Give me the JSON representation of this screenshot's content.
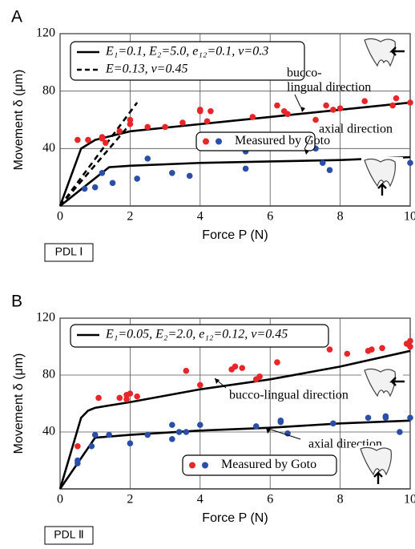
{
  "chart_data": [
    {
      "type": "line",
      "panel": "A",
      "box_label": "PDL Ⅰ",
      "x_label": "Force  P (N)",
      "y_label": "Movement δ (μm)",
      "xlim": [
        0,
        10
      ],
      "ylim": [
        0,
        120
      ],
      "xticks": [
        0,
        2,
        4,
        6,
        8,
        10
      ],
      "yticks": [
        40,
        80,
        120
      ],
      "grid": true,
      "annotations": [
        "bucco-",
        "lingual direction",
        "axial direction"
      ],
      "series": [
        {
          "name": "E₁=0.1, E₂=5.0, e₁₂=0.1, ν=0.3",
          "mode": "line",
          "dash": false,
          "color": "#000000",
          "x": [
            0,
            0.6,
            1,
            2,
            4,
            6,
            8,
            10
          ],
          "values": [
            0,
            40,
            46,
            52,
            57,
            62,
            67,
            72
          ]
        },
        {
          "mode": "line",
          "dash": false,
          "color": "#000000",
          "x": [
            0,
            1.4,
            2,
            4,
            6,
            8,
            10
          ],
          "values": [
            0,
            27,
            28,
            30,
            31,
            32,
            34
          ]
        },
        {
          "name": "E=0.13, ν=0.45",
          "mode": "line",
          "dash": true,
          "color": "#000000",
          "x": [
            0,
            2.2
          ],
          "values": [
            0,
            72
          ]
        },
        {
          "mode": "line",
          "dash": true,
          "color": "#000000",
          "x": [
            0,
            2.0
          ],
          "values": [
            0,
            57
          ]
        },
        {
          "name": "Measured by Goto",
          "mode": "markers",
          "color": "#e8262a",
          "x": [
            0.5,
            0.8,
            1.2,
            1.3,
            1.2,
            1.7,
            2,
            2,
            2.5,
            3,
            3.5,
            4,
            4,
            4.2,
            4.3,
            5.5,
            6.2,
            6.4,
            6.5,
            7.3,
            7.6,
            7.8,
            8,
            8.7,
            9.5,
            9.6,
            10
          ],
          "values": [
            46,
            46,
            47,
            44,
            48,
            52,
            57,
            60,
            55,
            55,
            58,
            66,
            67,
            59,
            66,
            62,
            70,
            66,
            64,
            60,
            70,
            67,
            68,
            73,
            70,
            75,
            72
          ]
        },
        {
          "mode": "markers",
          "color": "#2b4fa8",
          "x": [
            0.7,
            1,
            1.2,
            1.5,
            2.2,
            2.5,
            3.2,
            3.7,
            5.3,
            5.3,
            7.3,
            7.5,
            7.7,
            10
          ],
          "values": [
            12,
            13,
            23,
            16,
            19,
            33,
            23,
            21,
            38,
            26,
            40,
            30,
            25,
            30
          ]
        }
      ]
    },
    {
      "type": "line",
      "panel": "B",
      "box_label": "PDL Ⅱ",
      "x_label": "Force  P (N)",
      "y_label": "Movement δ (μm)",
      "xlim": [
        0,
        10
      ],
      "ylim": [
        0,
        120
      ],
      "xticks": [
        0,
        2,
        4,
        6,
        8,
        10
      ],
      "yticks": [
        40,
        80,
        120
      ],
      "grid": true,
      "annotations": [
        "bucco-lingual direction",
        "axial direction"
      ],
      "series": [
        {
          "name": "E₁=0.05, E₂=2.0, e₁₂=0.12, ν=0.45",
          "mode": "line",
          "dash": false,
          "color": "#000000",
          "x": [
            0,
            0.6,
            0.8,
            1,
            2,
            4,
            6,
            8,
            10
          ],
          "values": [
            0,
            50,
            55,
            57,
            61,
            70,
            77,
            86,
            97
          ]
        },
        {
          "mode": "line",
          "dash": false,
          "color": "#000000",
          "x": [
            0,
            1,
            2,
            4,
            6,
            8,
            10
          ],
          "values": [
            0,
            36,
            38,
            41,
            43,
            46,
            48
          ]
        },
        {
          "name": "Measured by Goto",
          "mode": "markers",
          "color": "#e8262a",
          "x": [
            0.5,
            1.1,
            1.7,
            1.9,
            1.9,
            2,
            2.2,
            3.6,
            4,
            4.9,
            5,
            5.2,
            5.6,
            5.7,
            6.2,
            7.7,
            8.2,
            8.8,
            8.9,
            9.2,
            9.9,
            10,
            10
          ],
          "values": [
            30,
            64,
            64,
            66,
            63,
            67,
            65,
            83,
            73,
            84,
            86,
            85,
            77,
            79,
            89,
            98,
            95,
            97,
            98,
            99,
            102,
            104,
            100
          ]
        },
        {
          "mode": "markers",
          "color": "#2b4fa8",
          "x": [
            0.5,
            0.5,
            0.9,
            1,
            1.4,
            2,
            2.5,
            3.2,
            3.2,
            3.4,
            3.6,
            4,
            5.6,
            6.3,
            6.3,
            6.5,
            7.8,
            8.8,
            9.3,
            9.3,
            9.7,
            10
          ],
          "values": [
            20,
            18,
            30,
            38,
            38,
            32,
            38,
            45,
            35,
            40,
            40,
            45,
            44,
            48,
            47,
            39,
            46,
            50,
            50,
            51,
            40,
            50
          ]
        }
      ]
    }
  ]
}
